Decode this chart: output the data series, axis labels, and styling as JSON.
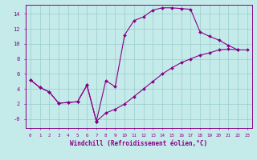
{
  "xlabel": "Windchill (Refroidissement éolien,°C)",
  "bg_color": "#c5eaea",
  "line_color": "#880088",
  "grid_color": "#99cccc",
  "xlim": [
    -0.5,
    23.5
  ],
  "ylim": [
    -1.2,
    15.2
  ],
  "xticks": [
    0,
    1,
    2,
    3,
    4,
    5,
    6,
    7,
    8,
    9,
    10,
    11,
    12,
    13,
    14,
    15,
    16,
    17,
    18,
    19,
    20,
    21,
    22,
    23
  ],
  "yticks": [
    0,
    2,
    4,
    6,
    8,
    10,
    12,
    14
  ],
  "ytick_labels": [
    "-0",
    "2",
    "4",
    "6",
    "8",
    "10",
    "12",
    "14"
  ],
  "shared_x": [
    0,
    1,
    2,
    3,
    4,
    5,
    6,
    7
  ],
  "shared_y": [
    5.2,
    4.2,
    3.6,
    2.1,
    2.2,
    2.3,
    4.5,
    -0.3
  ],
  "line1_x": [
    7,
    8,
    9,
    10,
    11,
    12,
    13,
    14,
    15,
    16,
    17,
    18,
    19,
    20,
    21,
    22
  ],
  "line1_y": [
    -0.3,
    5.1,
    4.3,
    11.2,
    13.1,
    13.6,
    14.5,
    14.8,
    14.8,
    14.7,
    14.6,
    11.6,
    11.0,
    10.5,
    9.8,
    9.2
  ],
  "line2_x": [
    7,
    8,
    9,
    10,
    11,
    12,
    13,
    14,
    15,
    16,
    17,
    18,
    19,
    20,
    21,
    22,
    23
  ],
  "line2_y": [
    -0.3,
    0.8,
    1.3,
    2.0,
    3.0,
    4.0,
    5.0,
    6.0,
    6.8,
    7.5,
    8.0,
    8.5,
    8.8,
    9.2,
    9.3,
    9.2,
    9.2
  ]
}
